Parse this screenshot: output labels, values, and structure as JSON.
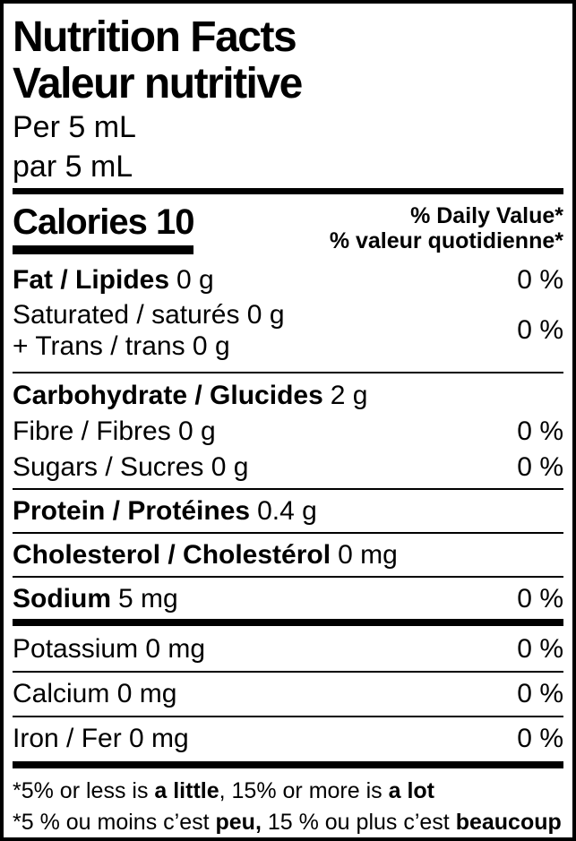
{
  "colors": {
    "text": "#000000",
    "background": "#ffffff",
    "rule": "#000000"
  },
  "header": {
    "title_en": "Nutrition Facts",
    "title_fr": "Valeur nutritive",
    "serving_en": "Per 5 mL",
    "serving_fr": "par 5 mL"
  },
  "calories": {
    "label": "Calories",
    "value": "10"
  },
  "dv_header": {
    "en": "% Daily Value*",
    "fr": "% valeur quotidienne*"
  },
  "rows": [
    {
      "name": "Fat / Lipides",
      "amount": "0 g",
      "dv": "0 %"
    },
    {
      "line1": "Saturated / saturés 0 g",
      "line2": "+ Trans / trans 0 g",
      "dv": "0 %"
    },
    {
      "name": "Carbohydrate / Glucides",
      "amount": "2 g"
    },
    {
      "name": "Fibre / Fibres 0 g",
      "dv": "0 %"
    },
    {
      "name": "Sugars / Sucres 0 g",
      "dv": "0 %"
    },
    {
      "name": "Protein / Protéines",
      "amount": "0.4 g"
    },
    {
      "name": "Cholesterol / Cholestérol",
      "amount": "0 mg"
    },
    {
      "name": "Sodium",
      "amount": "5 mg",
      "dv": "0 %"
    },
    {
      "name": "Potassium 0 mg",
      "dv": "0 %"
    },
    {
      "name": "Calcium 0 mg",
      "dv": "0 %"
    },
    {
      "name": "Iron / Fer 0 mg",
      "dv": "0 %"
    }
  ],
  "footnote": {
    "en": {
      "p1": "*5% or less is ",
      "b1": "a little",
      "p2": ", 15% or more is ",
      "b2": "a lot"
    },
    "fr": {
      "p1": "*5 % ou moins c’est ",
      "b1": "peu,",
      "p2": " 15 % ou plus c’est ",
      "b2": "beaucoup"
    }
  }
}
